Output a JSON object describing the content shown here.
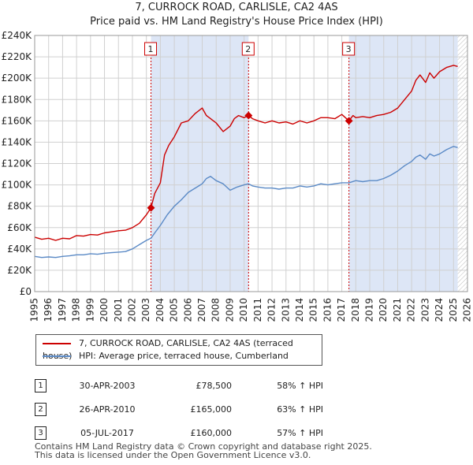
{
  "title_line1": "7, CURROCK ROAD, CARLISLE, CA2 4AS",
  "title_line2": "Price paid vs. HM Land Registry's House Price Index (HPI)",
  "legend": {
    "property": "7, CURROCK ROAD, CARLISLE, CA2 4AS (terraced house)",
    "hpi": "HPI: Average price, terraced house, Cumberland"
  },
  "colors": {
    "property": "#cc0000",
    "hpi": "#5b8ac6",
    "shade": "#dde6f6",
    "grid": "#d0d0d0",
    "marker_line": "#cc0000"
  },
  "sales": [
    {
      "num": "1",
      "date": "30-APR-2003",
      "price": "£78,500",
      "hpi_change": "58% ↑ HPI"
    },
    {
      "num": "2",
      "date": "26-APR-2010",
      "price": "£165,000",
      "hpi_change": "63% ↑ HPI"
    },
    {
      "num": "3",
      "date": "05-JUL-2017",
      "price": "£160,000",
      "hpi_change": "57% ↑ HPI"
    }
  ],
  "footer_line1": "Contains HM Land Registry data © Crown copyright and database right 2025.",
  "footer_line2": "This data is licensed under the Open Government Licence v3.0.",
  "chart_data": {
    "type": "line",
    "title": "7, CURROCK ROAD, CARLISLE, CA2 4AS",
    "subtitle": "Price paid vs. HM Land Registry's House Price Index (HPI)",
    "xlabel": "",
    "ylabel": "",
    "xlim": [
      1995,
      2026
    ],
    "ylim": [
      0,
      240000
    ],
    "y_ticks": [
      0,
      20000,
      40000,
      60000,
      80000,
      100000,
      120000,
      140000,
      160000,
      180000,
      200000,
      220000,
      240000
    ],
    "y_tick_labels": [
      "£0",
      "£20K",
      "£40K",
      "£60K",
      "£80K",
      "£100K",
      "£120K",
      "£140K",
      "£160K",
      "£180K",
      "£200K",
      "£220K",
      "£240K"
    ],
    "x_ticks": [
      1995,
      1996,
      1997,
      1998,
      1999,
      2000,
      2001,
      2002,
      2003,
      2004,
      2005,
      2006,
      2007,
      2008,
      2009,
      2010,
      2011,
      2012,
      2013,
      2014,
      2015,
      2016,
      2017,
      2018,
      2019,
      2020,
      2021,
      2022,
      2023,
      2024,
      2025,
      2026
    ],
    "x_tick_labels": [
      "1995",
      "1996",
      "1997",
      "1998",
      "1999",
      "2000",
      "2001",
      "2002",
      "2003",
      "2004",
      "2005",
      "2006",
      "2007",
      "2008",
      "2009",
      "2010",
      "2011",
      "2012",
      "2013",
      "2014",
      "2015",
      "2016",
      "2017",
      "2018",
      "2019",
      "2020",
      "2021",
      "2022",
      "2023",
      "2024",
      "2025",
      "2026"
    ],
    "grid": true,
    "shaded_periods": [
      [
        2003.33,
        2010.32
      ],
      [
        2017.51,
        2025.3
      ]
    ],
    "hatched_from": 2025.3,
    "series": [
      {
        "name": "7, CURROCK ROAD, CARLISLE, CA2 4AS (terraced house)",
        "x": [
          1995.0,
          1995.5,
          1996.0,
          1996.5,
          1997.0,
          1997.5,
          1998.0,
          1998.5,
          1999.0,
          1999.5,
          2000.0,
          2000.5,
          2001.0,
          2001.5,
          2002.0,
          2002.5,
          2003.0,
          2003.33,
          2003.6,
          2004.0,
          2004.3,
          2004.6,
          2005.0,
          2005.5,
          2006.0,
          2006.5,
          2007.0,
          2007.3,
          2007.6,
          2008.0,
          2008.5,
          2009.0,
          2009.3,
          2009.6,
          2010.0,
          2010.32,
          2010.6,
          2011.0,
          2011.5,
          2012.0,
          2012.5,
          2013.0,
          2013.5,
          2014.0,
          2014.5,
          2015.0,
          2015.5,
          2016.0,
          2016.5,
          2017.0,
          2017.51,
          2017.8,
          2018.0,
          2018.5,
          2019.0,
          2019.5,
          2020.0,
          2020.5,
          2021.0,
          2021.5,
          2022.0,
          2022.3,
          2022.6,
          2023.0,
          2023.3,
          2023.6,
          2024.0,
          2024.5,
          2025.0,
          2025.3
        ],
        "values": [
          51000,
          49000,
          50000,
          48000,
          50000,
          49500,
          52500,
          52000,
          53500,
          53000,
          55000,
          56000,
          57000,
          57500,
          60000,
          64000,
          72000,
          78500,
          92000,
          102000,
          128000,
          137000,
          145000,
          158000,
          160000,
          167000,
          172000,
          165000,
          162000,
          158000,
          150000,
          155000,
          162000,
          165000,
          163000,
          165000,
          162000,
          160000,
          158000,
          160000,
          158000,
          159000,
          157000,
          160000,
          158000,
          160000,
          163000,
          163000,
          162000,
          166000,
          160000,
          165000,
          163000,
          164000,
          163000,
          165000,
          166000,
          168000,
          172000,
          180000,
          188000,
          198000,
          203000,
          196000,
          205000,
          200000,
          206000,
          210000,
          212000,
          211000
        ]
      },
      {
        "name": "HPI: Average price, terraced house, Cumberland",
        "x": [
          1995.0,
          1995.5,
          1996.0,
          1996.5,
          1997.0,
          1997.5,
          1998.0,
          1998.5,
          1999.0,
          1999.5,
          2000.0,
          2000.5,
          2001.0,
          2001.5,
          2002.0,
          2002.5,
          2003.0,
          2003.33,
          2003.6,
          2004.0,
          2004.5,
          2005.0,
          2005.5,
          2006.0,
          2006.5,
          2007.0,
          2007.3,
          2007.6,
          2008.0,
          2008.5,
          2009.0,
          2009.5,
          2010.0,
          2010.32,
          2010.6,
          2011.0,
          2011.5,
          2012.0,
          2012.5,
          2013.0,
          2013.5,
          2014.0,
          2014.5,
          2015.0,
          2015.5,
          2016.0,
          2016.5,
          2017.0,
          2017.51,
          2018.0,
          2018.5,
          2019.0,
          2019.5,
          2020.0,
          2020.5,
          2021.0,
          2021.5,
          2022.0,
          2022.3,
          2022.6,
          2023.0,
          2023.3,
          2023.6,
          2024.0,
          2024.5,
          2025.0,
          2025.3
        ],
        "values": [
          33000,
          32000,
          32500,
          32000,
          33000,
          33500,
          34500,
          34500,
          35500,
          35000,
          36000,
          36500,
          37000,
          37500,
          40000,
          44000,
          48000,
          50000,
          55000,
          62000,
          72000,
          80000,
          86000,
          93000,
          97000,
          101000,
          106000,
          108000,
          104000,
          101000,
          95000,
          98000,
          100000,
          101000,
          99000,
          98000,
          97000,
          97000,
          96000,
          97000,
          97000,
          99000,
          98000,
          99000,
          101000,
          100000,
          101000,
          102000,
          102000,
          104000,
          103000,
          104000,
          104000,
          106000,
          109000,
          113000,
          118000,
          122000,
          126000,
          128000,
          124000,
          129000,
          127000,
          129000,
          133000,
          136000,
          135000
        ]
      }
    ],
    "sale_markers": [
      {
        "label": "1",
        "x": 2003.33,
        "value": 78500
      },
      {
        "label": "2",
        "x": 2010.32,
        "value": 165000
      },
      {
        "label": "3",
        "x": 2017.51,
        "value": 160000
      }
    ]
  }
}
